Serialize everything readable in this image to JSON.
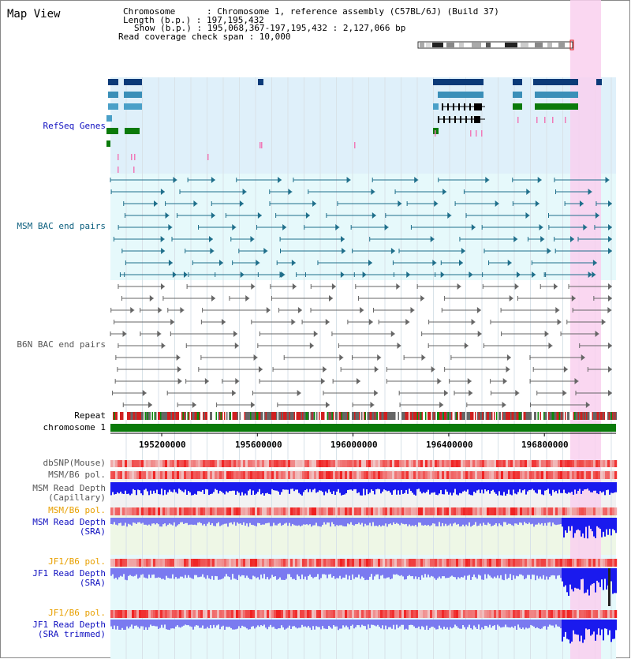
{
  "page": {
    "title": "Map View"
  },
  "info": {
    "chromosome": "Chromosome      : Chromosome 1, reference assembly (C57BL/6J) (Build 37)",
    "length": "Length (b.p.) : 197,195,432",
    "show": "Show (b.p.) : 195,068,367-197,195,432 : 2,127,066 bp",
    "span": "Read coverage check span : 10,000"
  },
  "tracks": {
    "refseq": "RefSeq Genes",
    "msm_bac": "MSM BAC end pairs",
    "b6n_bac": "B6N BAC end pairs",
    "repeat": "Repeat",
    "chromosome": "chromosome 1",
    "dbsnp": "dbSNP(Mouse)",
    "msm_b6_pol_1": "MSM/B6 pol.",
    "msm_depth_cap_1": "MSM Read Depth",
    "msm_depth_cap_2": "(Capillary)",
    "msm_b6_pol_2": "MSM/B6 pol.",
    "msm_depth_sra_1": "MSM Read Depth",
    "msm_depth_sra_2": "(SRA)",
    "jf1_b6_pol_1": "JF1/B6 pol.",
    "jf1_depth_sra_1": "JF1 Read Depth",
    "jf1_depth_sra_2": "(SRA)",
    "jf1_b6_pol_2": "JF1/B6 pol.",
    "jf1_depth_trim_1": "JF1 Read Depth",
    "jf1_depth_trim_2": "(SRA trimmed)"
  },
  "axis": {
    "ticks": [
      "195200000",
      "195600000",
      "196000000",
      "196400000",
      "196800000"
    ]
  },
  "colors": {
    "refseq_bg": "#dff0fa",
    "msm_bac_bg": "#e6f9fb",
    "highlight": "#f9d0ef",
    "chromosome": "#0a7a0a",
    "depth_blue": "#1a1aee",
    "depth_light": "#7a7af0"
  }
}
